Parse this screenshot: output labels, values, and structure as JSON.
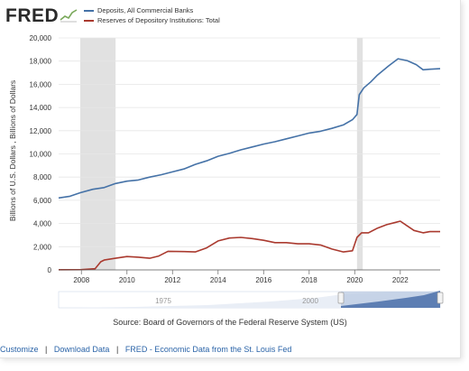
{
  "brand": {
    "name": "FRED"
  },
  "legend": [
    {
      "label": "Deposits, All Commercial Banks",
      "color": "#4572a7"
    },
    {
      "label": "Reserves of Depository Institutions: Total",
      "color": "#aa3a2f"
    }
  ],
  "source": "Source: Board of Governors of the Federal Reserve System (US)",
  "footer": {
    "links": [
      "Customize",
      "Download Data",
      "FRED - Economic Data from the St. Louis Fed"
    ],
    "separator": "|"
  },
  "navigator": {
    "labels": [
      "1975",
      "2000"
    ]
  },
  "chart_data": {
    "type": "line",
    "title": "",
    "ylabel": "Billions of U.S. Dollars , Billions of Dollars",
    "xlabel": "",
    "xlim": [
      2007.0,
      2023.75
    ],
    "ylim": [
      0,
      20000
    ],
    "x_ticks": [
      2008,
      2010,
      2012,
      2014,
      2016,
      2018,
      2020,
      2022
    ],
    "y_ticks": [
      0,
      2000,
      4000,
      6000,
      8000,
      10000,
      12000,
      14000,
      16000,
      18000,
      20000
    ],
    "y_tick_labels": [
      "0",
      "2,000",
      "4,000",
      "6,000",
      "8,000",
      "10,000",
      "12,000",
      "14,000",
      "16,000",
      "18,000",
      "20,000"
    ],
    "grid": "horizontal",
    "recessions": [
      [
        2007.95,
        2009.5
      ],
      [
        2020.1,
        2020.35
      ]
    ],
    "series": [
      {
        "name": "Deposits, All Commercial Banks",
        "color": "#4572a7",
        "x": [
          2007.0,
          2007.5,
          2007.95,
          2008.5,
          2009.0,
          2009.5,
          2010.0,
          2010.5,
          2011.0,
          2011.5,
          2012.0,
          2012.5,
          2013.0,
          2013.5,
          2014.0,
          2014.5,
          2015.0,
          2015.5,
          2016.0,
          2016.5,
          2017.0,
          2017.5,
          2018.0,
          2018.5,
          2019.0,
          2019.5,
          2019.9,
          2020.1,
          2020.2,
          2020.4,
          2020.7,
          2021.0,
          2021.5,
          2021.9,
          2022.3,
          2022.7,
          2023.0,
          2023.3,
          2023.75
        ],
        "y": [
          6200,
          6350,
          6650,
          6950,
          7100,
          7450,
          7650,
          7750,
          8000,
          8200,
          8450,
          8700,
          9100,
          9400,
          9800,
          10050,
          10350,
          10600,
          10850,
          11050,
          11300,
          11550,
          11800,
          11950,
          12200,
          12500,
          12950,
          13400,
          15100,
          15700,
          16200,
          16800,
          17600,
          18200,
          18050,
          17700,
          17250,
          17300,
          17350
        ]
      },
      {
        "name": "Reserves of Depository Institutions: Total",
        "color": "#aa3a2f",
        "x": [
          2007.0,
          2008.0,
          2008.6,
          2008.85,
          2009.0,
          2009.5,
          2010.0,
          2010.5,
          2011.0,
          2011.4,
          2011.8,
          2012.5,
          2013.0,
          2013.5,
          2014.0,
          2014.5,
          2015.0,
          2015.5,
          2016.0,
          2016.5,
          2017.0,
          2017.5,
          2018.0,
          2018.5,
          2019.0,
          2019.5,
          2019.9,
          2020.1,
          2020.3,
          2020.6,
          2021.0,
          2021.4,
          2021.8,
          2022.0,
          2022.3,
          2022.6,
          2023.0,
          2023.3,
          2023.75
        ],
        "y": [
          15,
          20,
          100,
          700,
          850,
          1000,
          1150,
          1100,
          1000,
          1200,
          1600,
          1580,
          1550,
          1900,
          2500,
          2750,
          2800,
          2700,
          2550,
          2350,
          2350,
          2250,
          2250,
          2150,
          1800,
          1550,
          1650,
          2800,
          3200,
          3200,
          3600,
          3900,
          4100,
          4200,
          3800,
          3400,
          3200,
          3300,
          3300
        ]
      }
    ]
  }
}
